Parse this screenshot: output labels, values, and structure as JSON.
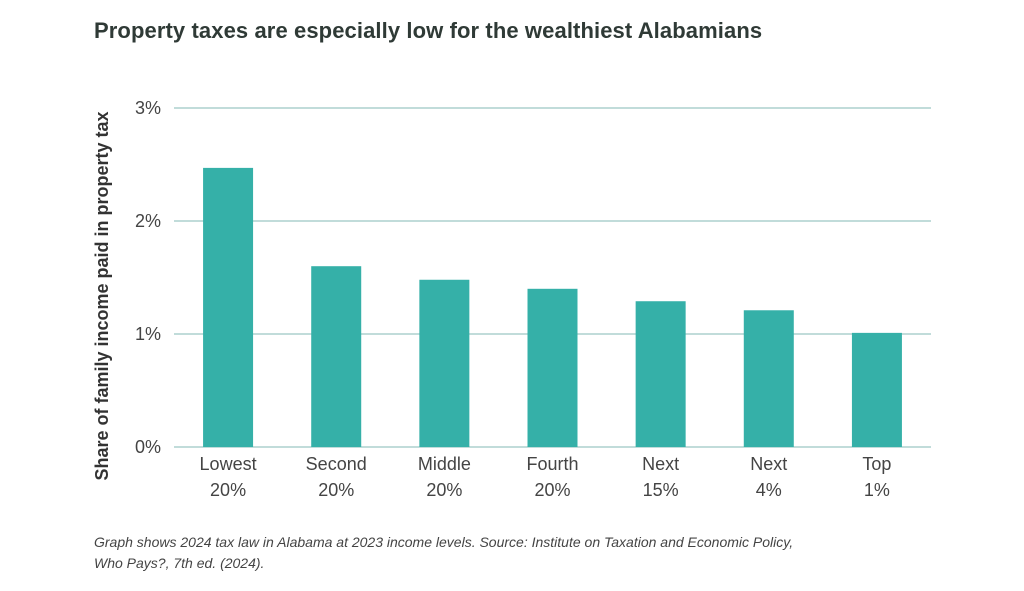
{
  "chart_data": {
    "type": "bar",
    "title": "Property taxes are especially low for the wealthiest Alabamians",
    "ylabel": "Share of family income paid in property tax",
    "xlabel": "",
    "categories": [
      [
        "Lowest",
        "20%"
      ],
      [
        "Second",
        "20%"
      ],
      [
        "Middle",
        "20%"
      ],
      [
        "Fourth",
        "20%"
      ],
      [
        "Next",
        "15%"
      ],
      [
        "Next",
        "4%"
      ],
      [
        "Top",
        "1%"
      ]
    ],
    "values": [
      2.47,
      1.6,
      1.48,
      1.4,
      1.29,
      1.21,
      1.01
    ],
    "ylim": [
      0,
      3
    ],
    "yticks": [
      0,
      1,
      2,
      3
    ],
    "ytick_labels": [
      "0%",
      "1%",
      "2%",
      "3%"
    ],
    "grid": true,
    "bar_color": "#35b0a8",
    "grid_color": "#9cc7c4"
  },
  "footnote": {
    "line1": "Graph shows 2024 tax law in Alabama at 2023 income levels. Source: Institute on Taxation and Economic Policy,",
    "line2": "Who Pays?, 7th ed. (2024)."
  }
}
